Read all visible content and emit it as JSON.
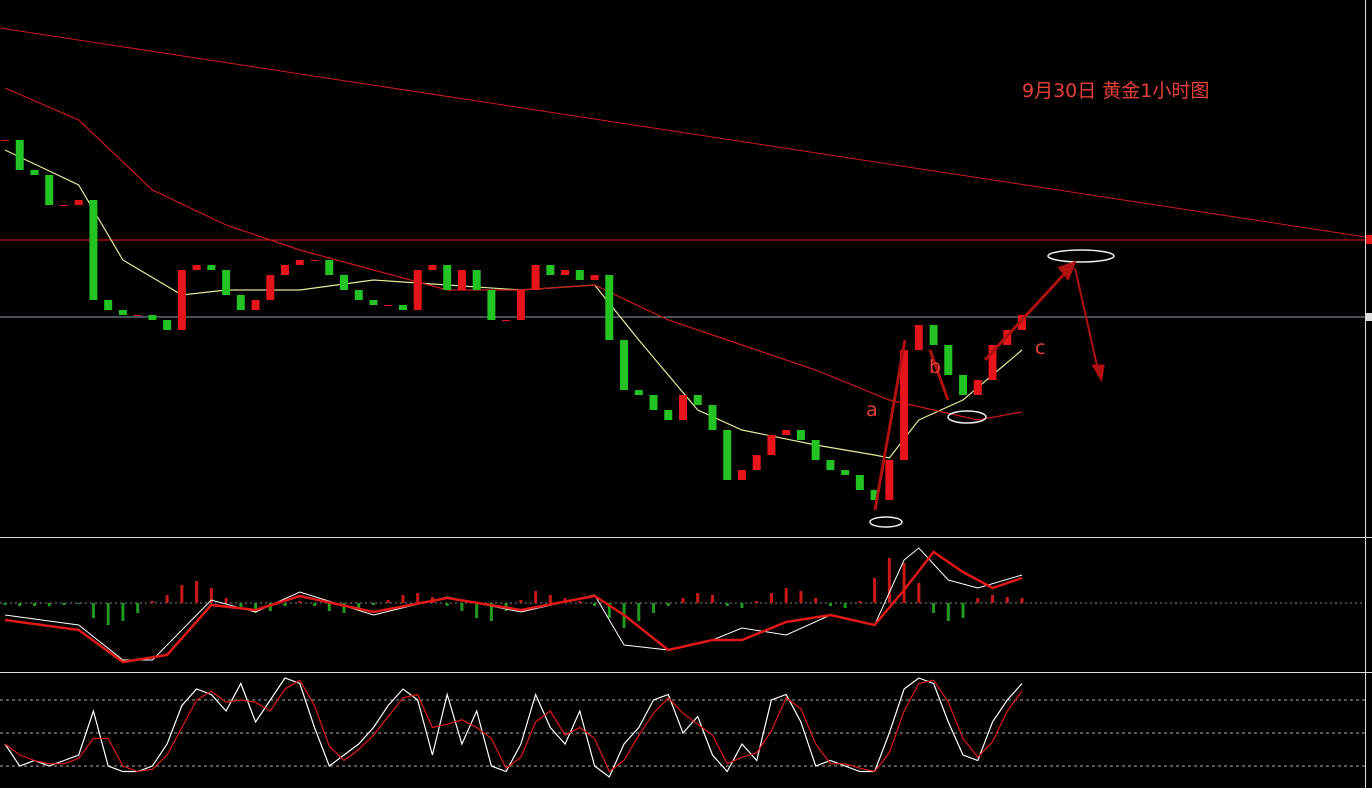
{
  "chart_data": [
    {
      "type": "candlestick",
      "title": "9月30日 黄金1小时图",
      "annotations": [
        "a",
        "b",
        "c"
      ],
      "up_color": "#e8141b",
      "down_color": "#22c322",
      "xlim": [
        0,
        69
      ],
      "ylim": [
        0,
        535
      ],
      "values": [
        395,
        365,
        360,
        330,
        330,
        335,
        235,
        225,
        220,
        220,
        215,
        205,
        265,
        270,
        265,
        240,
        225,
        235,
        260,
        270,
        275,
        275,
        260,
        245,
        235,
        230,
        230,
        225,
        265,
        270,
        245,
        265,
        245,
        215,
        215,
        245,
        270,
        260,
        265,
        255,
        260,
        195,
        145,
        140,
        125,
        115,
        140,
        130,
        105,
        55,
        65,
        80,
        100,
        105,
        95,
        75,
        65,
        60,
        45,
        35,
        75,
        185,
        210,
        190,
        160,
        140,
        155,
        190,
        205,
        220
      ],
      "lines": [
        {
          "color": "#e8e89a",
          "x": [
            0,
            5,
            8,
            12,
            15,
            20,
            25,
            30,
            35,
            40,
            43,
            47,
            50,
            55,
            59,
            60,
            62,
            65,
            67,
            69
          ],
          "values": [
            385,
            350,
            275,
            240,
            245,
            245,
            255,
            250,
            245,
            250,
            195,
            125,
            105,
            90,
            80,
            77,
            115,
            135,
            160,
            185
          ]
        },
        {
          "color": "#c81818",
          "x": [
            0,
            5,
            10,
            15,
            20,
            25,
            30,
            35,
            40,
            45,
            50,
            55,
            60,
            63,
            66,
            69
          ],
          "values": [
            447,
            415,
            345,
            310,
            285,
            265,
            245,
            245,
            250,
            215,
            190,
            165,
            135,
            125,
            115,
            123
          ]
        }
      ]
    },
    {
      "type": "macd",
      "xlim": [
        0,
        69
      ],
      "ylim": [
        -67,
        63
      ],
      "hist_up": "#c81818",
      "hist_down": "#1f9a1f",
      "histogram": [
        -2,
        -3,
        -3,
        -3,
        -2,
        -1,
        -15,
        -22,
        -18,
        -10,
        2,
        8,
        18,
        22,
        15,
        5,
        -5,
        -10,
        -8,
        -3,
        2,
        -3,
        -8,
        -10,
        -5,
        -2,
        3,
        8,
        10,
        6,
        -3,
        -8,
        -15,
        -18,
        -8,
        3,
        12,
        8,
        5,
        2,
        -3,
        -15,
        -25,
        -18,
        -10,
        -3,
        5,
        10,
        8,
        -3,
        -5,
        2,
        10,
        15,
        12,
        5,
        -3,
        -5,
        2,
        25,
        45,
        40,
        20,
        -10,
        -18,
        -15,
        5,
        8,
        6,
        5
      ],
      "lines": [
        {
          "color": "#ffffff",
          "x": [
            0,
            5,
            8,
            10,
            14,
            17,
            20,
            25,
            30,
            35,
            40,
            42,
            45,
            48,
            50,
            53,
            56,
            59,
            61,
            62,
            64,
            66,
            69
          ],
          "values": [
            -12,
            -22,
            -57,
            -57,
            3,
            -9,
            11,
            -12,
            6,
            -9,
            8,
            -42,
            -47,
            -37,
            -25,
            -32,
            -12,
            -22,
            43,
            55,
            23,
            15,
            28
          ]
        },
        {
          "color": "#e01818",
          "x": [
            0,
            5,
            8,
            11,
            14,
            17,
            20,
            25,
            30,
            35,
            40,
            42,
            45,
            48,
            50,
            53,
            56,
            59,
            61,
            63,
            65,
            67,
            69
          ],
          "values": [
            -17,
            -27,
            -59,
            -52,
            -2,
            -7,
            7,
            -9,
            5,
            -7,
            7,
            -12,
            -47,
            -37,
            -37,
            -19,
            -12,
            -22,
            13,
            51,
            31,
            15,
            25
          ]
        }
      ]
    },
    {
      "type": "line",
      "xlim": [
        0,
        69
      ],
      "ylim": [
        0,
        100
      ],
      "yticks": [
        20,
        50,
        80
      ],
      "grid": true,
      "series": [
        {
          "color": "#ffffff",
          "values": [
            40,
            20,
            25,
            20,
            25,
            30,
            70,
            20,
            15,
            15,
            20,
            40,
            75,
            90,
            85,
            70,
            95,
            60,
            80,
            100,
            95,
            55,
            20,
            30,
            40,
            55,
            75,
            90,
            80,
            30,
            85,
            40,
            70,
            20,
            15,
            40,
            85,
            55,
            40,
            70,
            20,
            10,
            40,
            55,
            80,
            85,
            50,
            65,
            30,
            15,
            40,
            25,
            80,
            85,
            60,
            20,
            25,
            20,
            15,
            15,
            50,
            90,
            100,
            95,
            60,
            30,
            25,
            60,
            80,
            95
          ]
        },
        {
          "color": "#e01818",
          "values": [
            40,
            30,
            25,
            22,
            22,
            27,
            45,
            45,
            20,
            15,
            17,
            30,
            55,
            80,
            88,
            78,
            80,
            78,
            70,
            90,
            98,
            75,
            38,
            25,
            35,
            48,
            65,
            82,
            85,
            55,
            58,
            62,
            55,
            45,
            18,
            28,
            60,
            70,
            48,
            55,
            45,
            15,
            25,
            48,
            68,
            82,
            68,
            58,
            48,
            22,
            28,
            32,
            52,
            82,
            72,
            40,
            22,
            22,
            18,
            15,
            32,
            70,
            95,
            98,
            78,
            45,
            28,
            42,
            70,
            88
          ]
        }
      ]
    }
  ]
}
